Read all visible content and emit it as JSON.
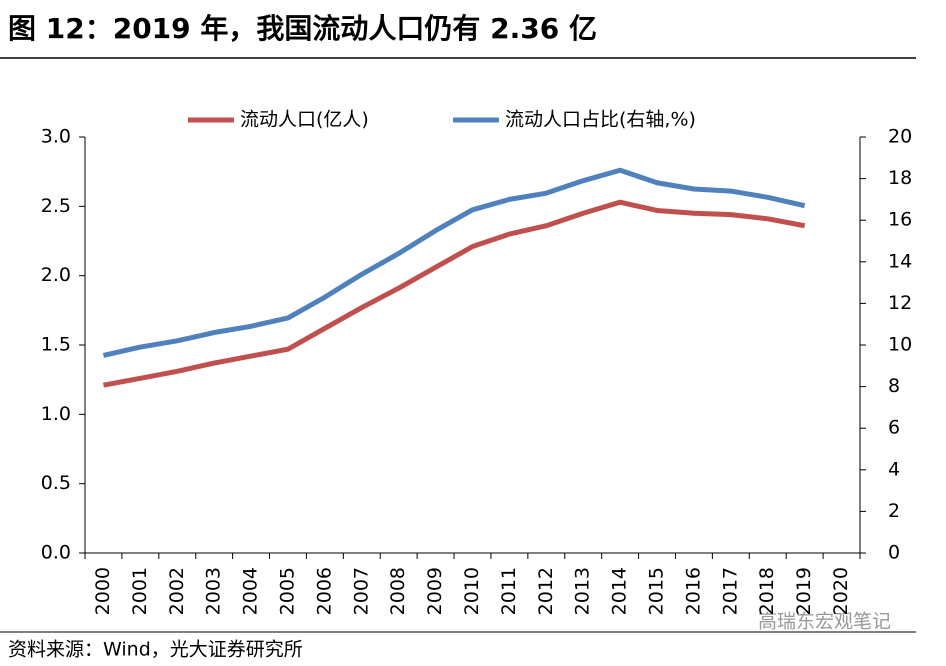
{
  "chart_data": {
    "type": "line",
    "title": "图 12：2019 年，我国流动人口仍有 2.36 亿",
    "source": "资料来源：Wind，光大证券研究所",
    "watermark": "高瑞东宏观笔记",
    "categories": [
      "2000",
      "2001",
      "2002",
      "2003",
      "2004",
      "2005",
      "2006",
      "2007",
      "2008",
      "2009",
      "2010",
      "2011",
      "2012",
      "2013",
      "2014",
      "2015",
      "2016",
      "2017",
      "2018",
      "2019",
      "2020"
    ],
    "series": [
      {
        "name": "流动人口(亿人)",
        "color": "#c0504d",
        "axis": "y",
        "values": [
          1.21,
          1.26,
          1.31,
          1.37,
          1.42,
          1.47,
          1.62,
          1.77,
          1.91,
          2.06,
          2.21,
          2.3,
          2.36,
          2.45,
          2.53,
          2.47,
          2.45,
          2.44,
          2.41,
          2.36,
          null
        ]
      },
      {
        "name": "流动人口占比(右轴,%)",
        "color": "#4f81bd",
        "axis": "y2",
        "values": [
          9.5,
          9.9,
          10.2,
          10.6,
          10.9,
          11.3,
          12.3,
          13.4,
          14.4,
          15.5,
          16.5,
          17.0,
          17.3,
          17.9,
          18.4,
          17.8,
          17.5,
          17.4,
          17.1,
          16.7,
          null
        ]
      }
    ],
    "ylim": [
      0,
      3
    ],
    "yticks": [
      {
        "value": 0,
        "label": "0.0"
      },
      {
        "value": 0.5,
        "label": "0.5"
      },
      {
        "value": 1,
        "label": "1.0"
      },
      {
        "value": 1.5,
        "label": "1.5"
      },
      {
        "value": 2,
        "label": "2.0"
      },
      {
        "value": 2.5,
        "label": "2.5"
      },
      {
        "value": 3,
        "label": "3.0"
      }
    ],
    "y2lim": [
      0,
      20
    ],
    "y2ticks": [
      0,
      2,
      4,
      6,
      8,
      10,
      12,
      14,
      16,
      18,
      20
    ],
    "legend": "top"
  }
}
